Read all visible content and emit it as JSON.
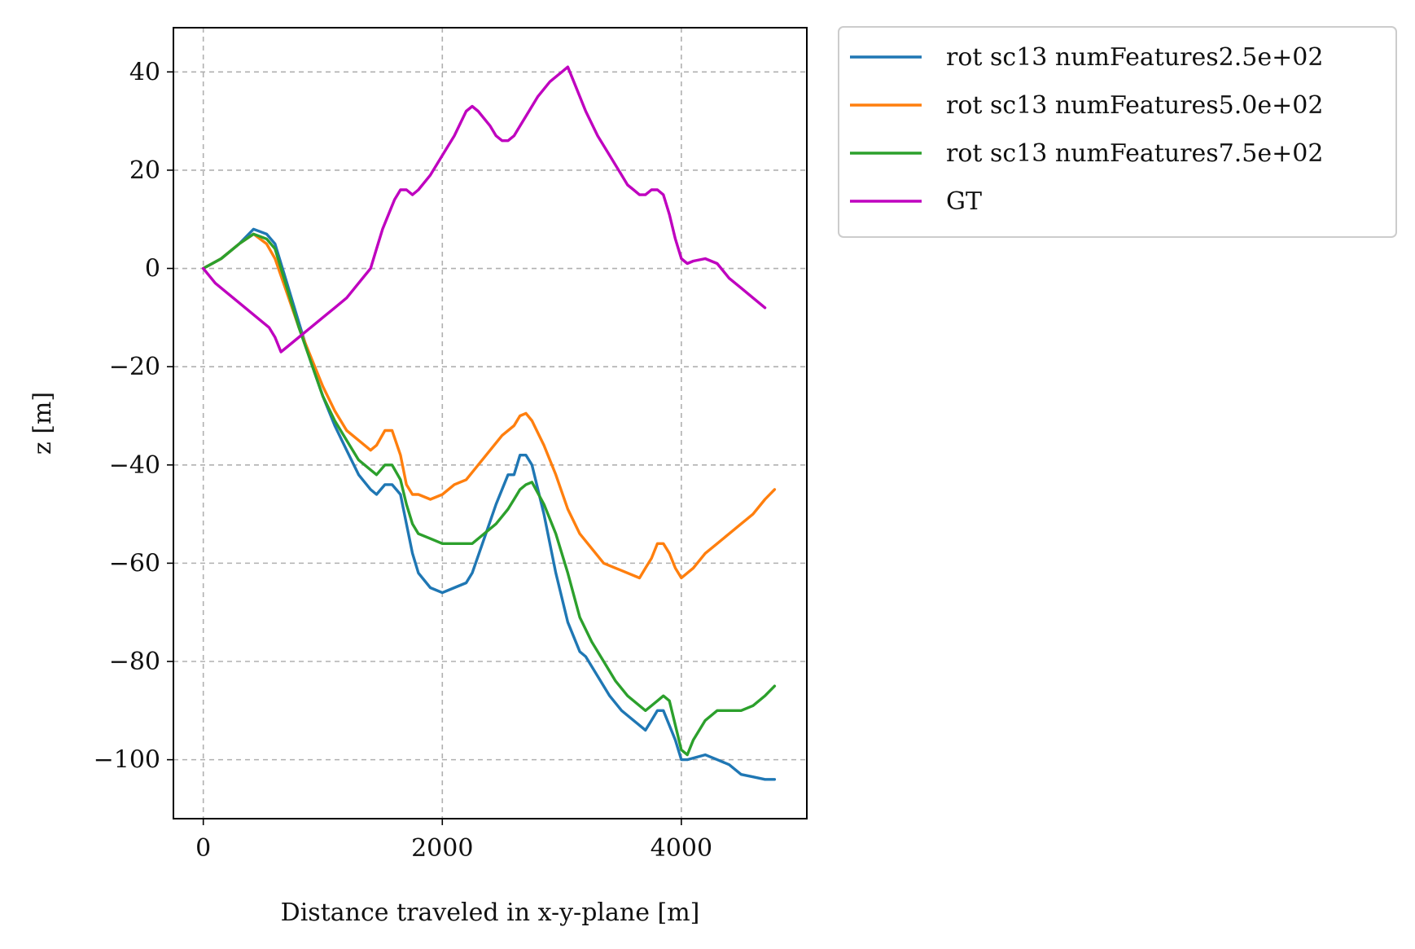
{
  "chart_data": {
    "type": "line",
    "title": "",
    "xlabel": "Distance traveled in x-y-plane [m]",
    "ylabel": "z [m]",
    "xlim": [
      -250,
      5050
    ],
    "ylim": [
      -112,
      49
    ],
    "xticks": [
      0,
      2000,
      4000
    ],
    "xtick_labels": [
      "0",
      "2000",
      "4000"
    ],
    "yticks": [
      40,
      20,
      0,
      -20,
      -40,
      -60,
      -80,
      -100
    ],
    "ytick_labels": [
      "40",
      "20",
      "0",
      "−20",
      "−40",
      "−60",
      "−80",
      "−100"
    ],
    "grid": true,
    "legend_position": "outside-top-right",
    "series": [
      {
        "name": "rot sc13 numFeatures2.5e+02",
        "color": "#1f77b4",
        "x": [
          0,
          150,
          300,
          420,
          530,
          600,
          700,
          800,
          900,
          1000,
          1100,
          1200,
          1300,
          1400,
          1450,
          1520,
          1580,
          1650,
          1700,
          1750,
          1800,
          1900,
          2000,
          2100,
          2200,
          2250,
          2350,
          2450,
          2550,
          2600,
          2650,
          2700,
          2750,
          2850,
          2950,
          3050,
          3150,
          3200,
          3300,
          3400,
          3500,
          3600,
          3700,
          3750,
          3800,
          3850,
          3950,
          4000,
          4050,
          4200,
          4300,
          4400,
          4500,
          4600,
          4700,
          4780
        ],
        "y": [
          0,
          2,
          5,
          8,
          7,
          5,
          -3,
          -11,
          -19,
          -26,
          -32,
          -37,
          -42,
          -45,
          -46,
          -44,
          -44,
          -46,
          -52,
          -58,
          -62,
          -65,
          -66,
          -65,
          -64,
          -62,
          -55,
          -48,
          -42,
          -42,
          -38,
          -38,
          -40,
          -50,
          -62,
          -72,
          -78,
          -79,
          -83,
          -87,
          -90,
          -92,
          -94,
          -92,
          -90,
          -90,
          -96,
          -100,
          -100,
          -99,
          -100,
          -101,
          -103,
          -103.5,
          -104,
          -104
        ]
      },
      {
        "name": "rot sc13 numFeatures5.0e+02",
        "color": "#ff7f0e",
        "x": [
          0,
          150,
          300,
          420,
          530,
          600,
          700,
          800,
          900,
          1000,
          1100,
          1200,
          1300,
          1400,
          1450,
          1520,
          1580,
          1650,
          1700,
          1750,
          1800,
          1900,
          2000,
          2100,
          2200,
          2300,
          2400,
          2500,
          2600,
          2650,
          2700,
          2750,
          2850,
          2950,
          3050,
          3150,
          3250,
          3350,
          3450,
          3550,
          3650,
          3700,
          3750,
          3800,
          3850,
          3900,
          3950,
          4000,
          4050,
          4100,
          4200,
          4300,
          4400,
          4500,
          4600,
          4700,
          4780
        ],
        "y": [
          0,
          2,
          5,
          7,
          5,
          2,
          -5,
          -12,
          -18,
          -24,
          -29,
          -33,
          -35,
          -37,
          -36,
          -33,
          -33,
          -38,
          -44,
          -46,
          -46,
          -47,
          -46,
          -44,
          -43,
          -40,
          -37,
          -34,
          -32,
          -30,
          -29.5,
          -31,
          -36,
          -42,
          -49,
          -54,
          -57,
          -60,
          -61,
          -62,
          -63,
          -61,
          -59,
          -56,
          -56,
          -58,
          -61,
          -63,
          -62,
          -61,
          -58,
          -56,
          -54,
          -52,
          -50,
          -47,
          -45
        ]
      },
      {
        "name": "rot sc13 numFeatures7.5e+02",
        "color": "#2ca02c",
        "x": [
          0,
          150,
          300,
          420,
          530,
          600,
          700,
          800,
          900,
          1000,
          1100,
          1200,
          1300,
          1400,
          1450,
          1520,
          1580,
          1650,
          1700,
          1750,
          1800,
          1900,
          2000,
          2100,
          2200,
          2250,
          2350,
          2450,
          2550,
          2600,
          2650,
          2700,
          2750,
          2850,
          2950,
          3050,
          3150,
          3250,
          3350,
          3450,
          3550,
          3650,
          3700,
          3750,
          3800,
          3850,
          3900,
          4000,
          4050,
          4100,
          4200,
          4300,
          4400,
          4500,
          4600,
          4700,
          4780
        ],
        "y": [
          0,
          2,
          5,
          7,
          6,
          4,
          -4,
          -12,
          -19,
          -26,
          -31,
          -35,
          -39,
          -41,
          -42,
          -40,
          -40,
          -43,
          -48,
          -52,
          -54,
          -55,
          -56,
          -56,
          -56,
          -56,
          -54,
          -52,
          -49,
          -47,
          -45,
          -44,
          -43.5,
          -48,
          -54,
          -62,
          -71,
          -76,
          -80,
          -84,
          -87,
          -89,
          -90,
          -89,
          -88,
          -87,
          -88,
          -98,
          -99,
          -96,
          -92,
          -90,
          -90,
          -90,
          -89,
          -87,
          -85
        ]
      },
      {
        "name": "GT",
        "color": "#bf00bf",
        "x": [
          0,
          100,
          200,
          300,
          400,
          500,
          550,
          600,
          650,
          700,
          800,
          900,
          1000,
          1100,
          1200,
          1300,
          1400,
          1450,
          1500,
          1550,
          1600,
          1650,
          1700,
          1750,
          1800,
          1900,
          2000,
          2100,
          2200,
          2250,
          2300,
          2400,
          2450,
          2500,
          2550,
          2600,
          2650,
          2700,
          2800,
          2900,
          2950,
          3000,
          3050,
          3100,
          3150,
          3200,
          3300,
          3400,
          3500,
          3550,
          3600,
          3650,
          3700,
          3750,
          3800,
          3850,
          3900,
          3950,
          4000,
          4050,
          4100,
          4200,
          4300,
          4400,
          4500,
          4600,
          4700
        ],
        "y": [
          0,
          -3,
          -5,
          -7,
          -9,
          -11,
          -12,
          -14,
          -17,
          -16,
          -14,
          -12,
          -10,
          -8,
          -6,
          -3,
          0,
          4,
          8,
          11,
          14,
          16,
          16,
          15,
          16,
          19,
          23,
          27,
          32,
          33,
          32,
          29,
          27,
          26,
          26,
          27,
          29,
          31,
          35,
          38,
          39,
          40,
          41,
          38,
          35,
          32,
          27,
          23,
          19,
          17,
          16,
          15,
          15,
          16,
          16,
          15,
          11,
          6,
          2,
          1,
          1.5,
          2,
          1,
          -2,
          -4,
          -6,
          -8
        ]
      }
    ]
  }
}
